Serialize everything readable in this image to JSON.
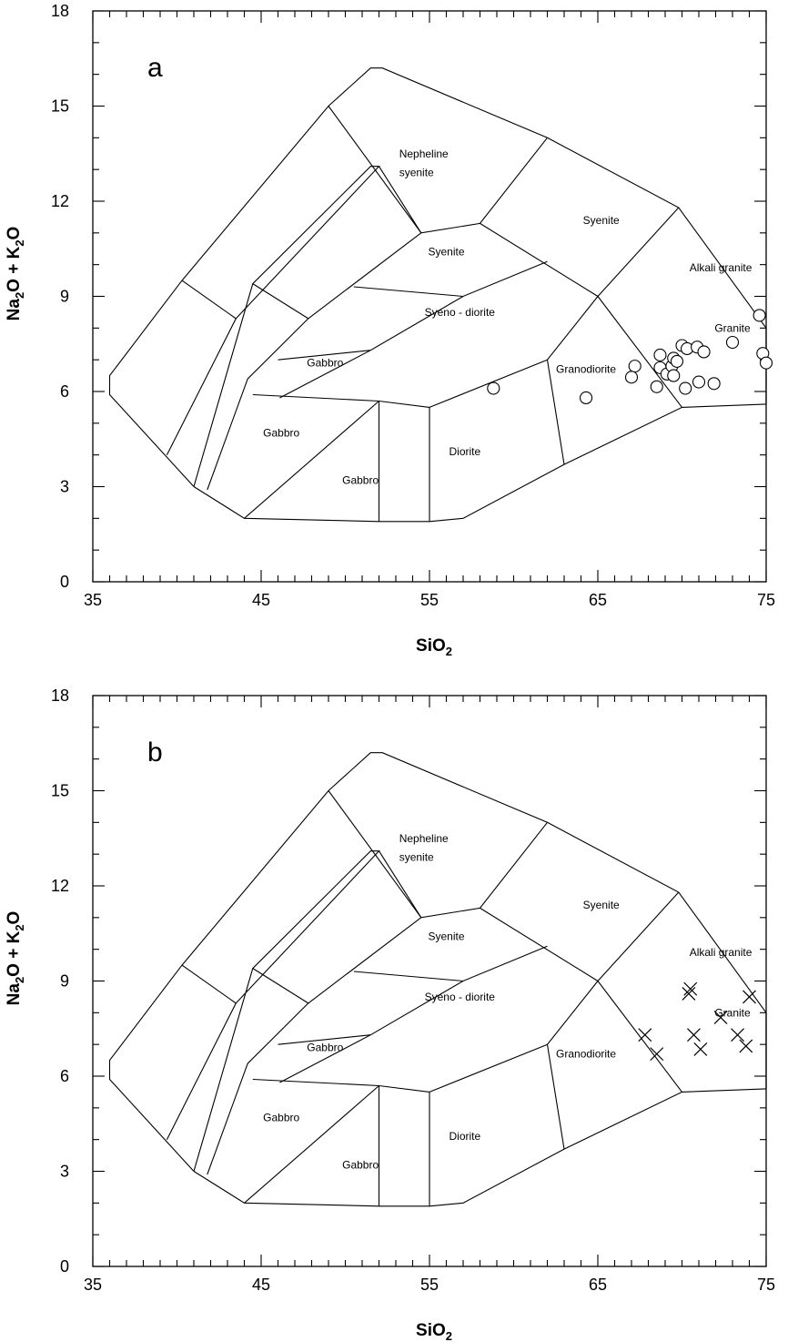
{
  "chart_data": [
    {
      "type": "scatter",
      "panel_label": "a",
      "xlabel": "SiO",
      "xlabel_sub": "2",
      "ylabel_parts": [
        "Na",
        "2",
        "O + K",
        "2",
        "O"
      ],
      "xlim": [
        35,
        75
      ],
      "ylim": [
        0,
        18
      ],
      "x_ticks": [
        35,
        45,
        55,
        65,
        75
      ],
      "y_ticks": [
        0,
        3,
        6,
        9,
        12,
        15,
        18
      ],
      "marker": "circle",
      "field_labels": [
        "Nepheline",
        "syenite",
        "Syenite",
        "Syenite",
        "Alkali granite",
        "Syeno - diorite",
        "Granite",
        "Gabbro",
        "Granodiorite",
        "Gabbro",
        "Diorite",
        "Gabbro"
      ],
      "points": [
        [
          58.8,
          6.1
        ],
        [
          64.3,
          5.8
        ],
        [
          67.2,
          6.8
        ],
        [
          67.0,
          6.45
        ],
        [
          68.5,
          6.15
        ],
        [
          68.7,
          6.75
        ],
        [
          68.7,
          7.15
        ],
        [
          69.1,
          6.55
        ],
        [
          69.4,
          6.8
        ],
        [
          69.5,
          7.05
        ],
        [
          69.5,
          6.5
        ],
        [
          69.7,
          6.95
        ],
        [
          70.0,
          7.45
        ],
        [
          70.3,
          7.35
        ],
        [
          70.2,
          6.1
        ],
        [
          70.9,
          7.4
        ],
        [
          71.0,
          6.3
        ],
        [
          71.3,
          7.25
        ],
        [
          71.9,
          6.25
        ],
        [
          73.0,
          7.55
        ],
        [
          74.6,
          8.4
        ],
        [
          74.8,
          7.2
        ],
        [
          75.0,
          6.9
        ]
      ]
    },
    {
      "type": "scatter",
      "panel_label": "b",
      "xlabel": "SiO",
      "xlabel_sub": "2",
      "ylabel_parts": [
        "Na",
        "2",
        "O + K",
        "2",
        "O"
      ],
      "xlim": [
        35,
        75
      ],
      "ylim": [
        0,
        18
      ],
      "x_ticks": [
        35,
        45,
        55,
        65,
        75
      ],
      "y_ticks": [
        0,
        3,
        6,
        9,
        12,
        15,
        18
      ],
      "marker": "x",
      "field_labels": [
        "Nepheline",
        "syenite",
        "Syenite",
        "Syenite",
        "Alkali granite",
        "Syeno - diorite",
        "Granite",
        "Gabbro",
        "Granodiorite",
        "Gabbro",
        "Diorite",
        "Gabbro"
      ],
      "points": [
        [
          67.8,
          7.3
        ],
        [
          68.5,
          6.7
        ],
        [
          70.4,
          8.6
        ],
        [
          70.5,
          8.75
        ],
        [
          70.7,
          7.3
        ],
        [
          71.1,
          6.85
        ],
        [
          72.3,
          7.85
        ],
        [
          73.3,
          7.3
        ],
        [
          73.8,
          6.95
        ],
        [
          74.0,
          8.5
        ]
      ]
    }
  ]
}
